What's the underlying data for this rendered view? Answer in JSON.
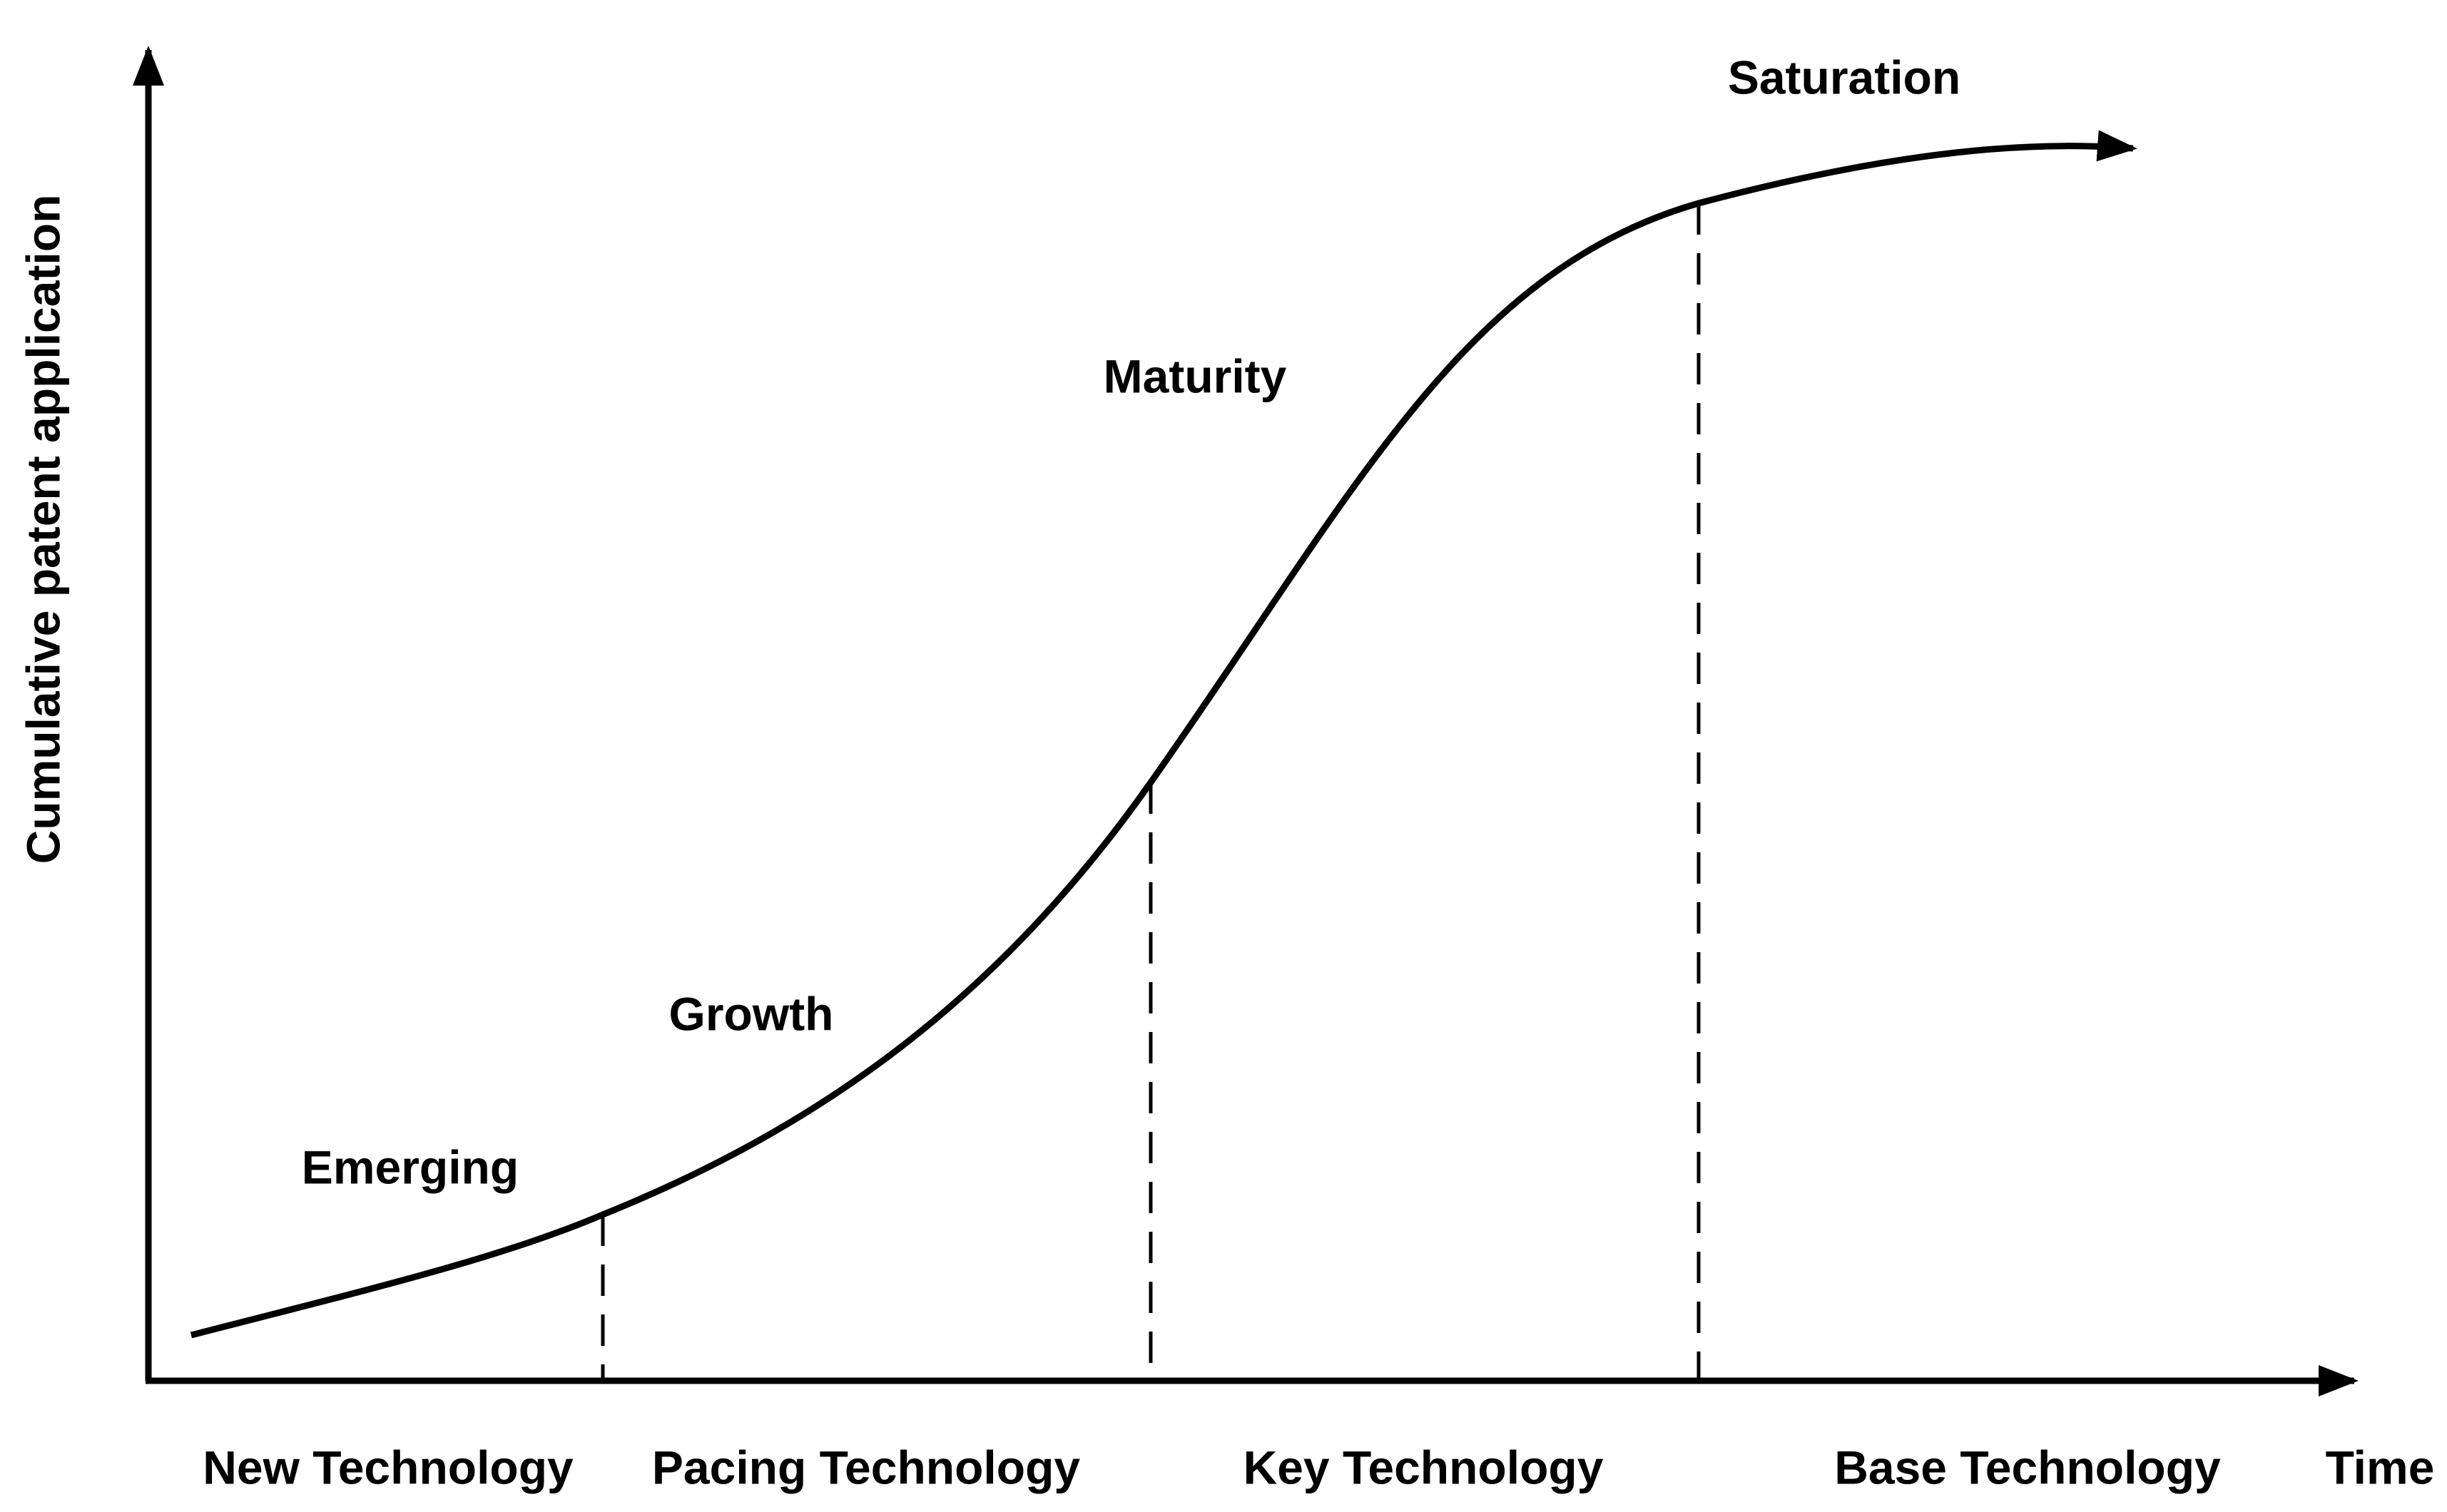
{
  "axes": {
    "y_label": "Cumulative patent application",
    "x_label": "Time"
  },
  "stages": [
    "Emerging",
    "Growth",
    "Maturity",
    "Saturation"
  ],
  "technologies": [
    "New Technology",
    "Pacing Technology",
    "Key Technology",
    "Base Technology"
  ]
}
